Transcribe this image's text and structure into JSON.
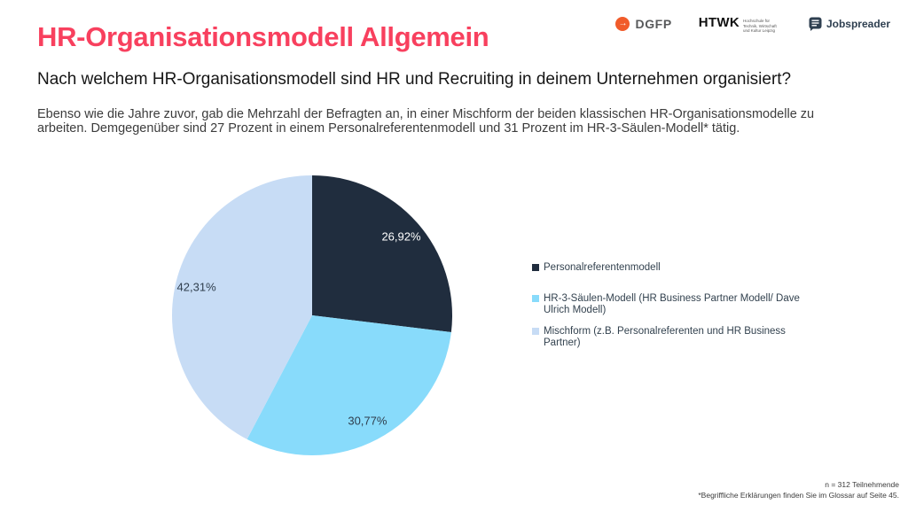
{
  "slide": {
    "title": "HR-Organisationsmodell Allgemein",
    "question": "Nach welchem HR-Organisationsmodell sind HR und Recruiting in deinem Unternehmen organisiert?",
    "description": "Ebenso wie die Jahre zuvor, gab die Mehrzahl der Befragten an, in einer Mischform der beiden klassischen HR-Organisationsmodelle zu arbeiten. Demgegenüber sind 27 Prozent in einem Personalreferentenmodell und 31 Prozent im HR-3-Säulen-Modell* tätig.",
    "colors": {
      "title": "#F8405E",
      "question_text": "#161616",
      "body_text": "#3C3C3C",
      "legend_text": "#33424F"
    }
  },
  "logos": {
    "dgfp": {
      "label": "DGFP",
      "arrow": "→",
      "icon_color": "#F15B2A",
      "text_color": "#58595B"
    },
    "htwk": {
      "label": "HTWK",
      "subtext": "Hochschule für Technik, Wirtschaft und Kultur Leipzig",
      "text_color": "#111111"
    },
    "jobspreader": {
      "label": "Jobspreader",
      "icon_color": "#2E3F50",
      "text_color": "#2E3F50"
    }
  },
  "chart_data": {
    "type": "pie",
    "title": "",
    "categories": [
      "Personalreferentenmodell",
      "HR-3-Säulen-Modell (HR Business Partner Modell/ Dave Ulrich Modell)",
      "Mischform (z.B. Personalreferenten und HR Business Partner)"
    ],
    "values": [
      26.92,
      30.77,
      42.31
    ],
    "value_labels": [
      "26,92%",
      "30,77%",
      "42,31%"
    ],
    "slice_colors": [
      "#202D3E",
      "#88DBFB",
      "#C7DCF5"
    ],
    "value_label_colors": [
      "#FFFFFF",
      "#2F3E4D",
      "#2F3E4D"
    ],
    "start_angle_deg": 0,
    "direction": "clockwise",
    "legend_position": "right",
    "label_radius_fraction": 0.85
  },
  "legend": {
    "items": [
      {
        "label": "Personalreferentenmodell",
        "color": "#202D3E"
      },
      {
        "label": "HR-3-Säulen-Modell (HR Business Partner Modell/ Dave Ulrich Modell)",
        "color": "#88DBFB"
      },
      {
        "label": "Mischform (z.B. Personalreferenten und HR Business Partner)",
        "color": "#C7DCF5"
      }
    ]
  },
  "footnotes": {
    "line1": "n = 312 Teilnehmende",
    "line2": "*Begriffliche Erklärungen finden Sie im Glossar auf Seite 45."
  }
}
